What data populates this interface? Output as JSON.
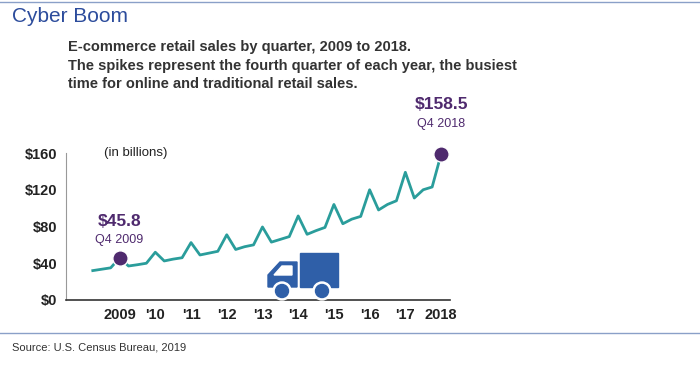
{
  "chart_data": {
    "type": "line",
    "title": "Cyber Boom",
    "subtitle": "E-commerce retail sales by quarter, 2009 to 2018.",
    "caption": [
      "The spikes represent the fourth quarter of each year, the busiest",
      "time for online and traditional retail sales."
    ],
    "unit_label": "(in billions)",
    "source": "Source: U.S. Census Bureau, 2019",
    "categories": [
      null,
      null,
      null,
      "2009",
      null,
      null,
      null,
      "'10",
      null,
      null,
      null,
      "'11",
      null,
      null,
      null,
      "'12",
      null,
      null,
      null,
      "'13",
      null,
      null,
      null,
      "'14",
      null,
      null,
      null,
      "'15",
      null,
      null,
      null,
      "'16",
      null,
      null,
      null,
      "'17",
      null,
      null,
      null,
      "2018"
    ],
    "values": [
      32.0,
      33.5,
      35.0,
      45.8,
      37.0,
      38.4,
      40.0,
      52.0,
      42.5,
      44.5,
      46.0,
      62.5,
      49.0,
      51.0,
      53.0,
      71.0,
      55.0,
      58.0,
      60.0,
      79.5,
      63.0,
      66.0,
      69.0,
      91.5,
      71.5,
      75.5,
      79.0,
      104.0,
      83.0,
      88.0,
      91.0,
      120.0,
      98.0,
      104.0,
      108.0,
      139.0,
      111.0,
      120.0,
      123.0,
      158.5
    ],
    "color": "#2a9d9b",
    "ylim": [
      0,
      160
    ],
    "yticks": [
      {
        "value": 0,
        "label": "$0"
      },
      {
        "value": 40,
        "label": "$40"
      },
      {
        "value": 80,
        "label": "$80"
      },
      {
        "value": 120,
        "label": "$120"
      },
      {
        "value": 160,
        "label": "$160"
      }
    ],
    "grid": false,
    "annotations": [
      {
        "index": 3,
        "value": 45.8,
        "label": "$45.8",
        "period": "Q4 2009"
      },
      {
        "index": 39,
        "value": 158.5,
        "label": "$158.5",
        "period": "Q4 2018"
      }
    ]
  }
}
